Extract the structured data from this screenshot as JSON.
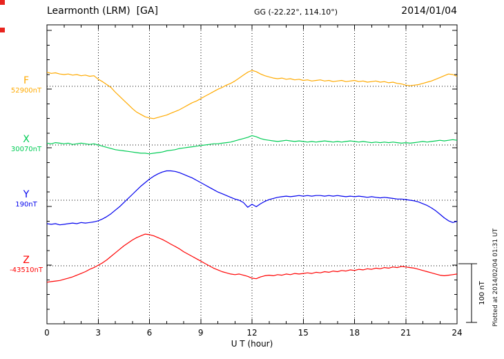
{
  "header": {
    "station": "Learmonth (LRM)  [GA]",
    "coords": "GG (-22.22°, 114.10°)",
    "date": "2014/01/04"
  },
  "footer_note": "Plotted at 2014/02/04 01:31 UT",
  "scale_bar": {
    "label": "100 nT",
    "nT": 100
  },
  "chart_data": {
    "type": "line",
    "title": "Learmonth (LRM) [GA] magnetogram 2014/01/04",
    "xlabel": "U T (hour)",
    "x_range": [
      0,
      24
    ],
    "x_major_ticks": [
      0,
      3,
      6,
      9,
      12,
      15,
      18,
      21,
      24
    ],
    "x_minor_step_hours": 1,
    "grid": "dotted",
    "sample_interval_hours": 0.25,
    "scale_division_nT": 100,
    "series": [
      {
        "name": "F",
        "baseline_label": "52900nT",
        "baseline_nT": 52900,
        "color": "#ffaa00",
        "offsets_nT": [
          24,
          22,
          23,
          21,
          20,
          21,
          19,
          20,
          18,
          19,
          17,
          18,
          12,
          8,
          3,
          -2,
          -10,
          -17,
          -24,
          -31,
          -38,
          -44,
          -48,
          -52,
          -54,
          -55,
          -53,
          -51,
          -49,
          -46,
          -43,
          -40,
          -36,
          -32,
          -28,
          -25,
          -21,
          -17,
          -13,
          -9,
          -5,
          -2,
          2,
          5,
          9,
          14,
          19,
          24,
          27,
          25,
          21,
          18,
          16,
          14,
          13,
          14,
          12,
          13,
          11,
          12,
          10,
          11,
          9,
          10,
          11,
          9,
          10,
          8,
          9,
          10,
          8,
          9,
          10,
          8,
          9,
          7,
          8,
          9,
          7,
          8,
          6,
          7,
          5,
          4,
          2,
          1,
          2,
          3,
          5,
          7,
          9,
          12,
          15,
          18,
          21,
          20,
          17
        ]
      },
      {
        "name": "X",
        "baseline_label": "30070nT",
        "baseline_nT": 30070,
        "color": "#00cc55",
        "offsets_nT": [
          3,
          2,
          4,
          3,
          2,
          3,
          1,
          2,
          3,
          2,
          1,
          2,
          0,
          -2,
          -4,
          -6,
          -8,
          -9,
          -10,
          -11,
          -12,
          -13,
          -14,
          -14,
          -15,
          -14,
          -13,
          -12,
          -10,
          -9,
          -8,
          -6,
          -5,
          -4,
          -3,
          -2,
          -1,
          0,
          1,
          2,
          2,
          3,
          4,
          5,
          7,
          9,
          11,
          13,
          16,
          14,
          11,
          9,
          8,
          7,
          6,
          7,
          8,
          7,
          6,
          7,
          6,
          5,
          6,
          5,
          6,
          7,
          6,
          5,
          6,
          5,
          6,
          7,
          6,
          5,
          6,
          5,
          4,
          5,
          4,
          5,
          4,
          5,
          4,
          3,
          4,
          3,
          4,
          5,
          6,
          5,
          6,
          7,
          8,
          7,
          8,
          9,
          8
        ]
      },
      {
        "name": "Y",
        "baseline_label": "190nT",
        "baseline_nT": 190,
        "color": "#0000ee",
        "offsets_nT": [
          -40,
          -41,
          -40,
          -42,
          -41,
          -40,
          -39,
          -40,
          -38,
          -39,
          -38,
          -37,
          -35,
          -32,
          -28,
          -23,
          -17,
          -11,
          -4,
          3,
          10,
          17,
          24,
          30,
          36,
          41,
          45,
          48,
          50,
          50,
          49,
          47,
          44,
          41,
          38,
          34,
          30,
          26,
          22,
          18,
          14,
          11,
          8,
          5,
          2,
          0,
          -4,
          -12,
          -7,
          -11,
          -6,
          -2,
          1,
          3,
          5,
          6,
          7,
          6,
          7,
          8,
          7,
          8,
          7,
          8,
          8,
          7,
          8,
          7,
          8,
          7,
          6,
          7,
          6,
          7,
          6,
          5,
          6,
          5,
          4,
          5,
          4,
          3,
          2,
          2,
          1,
          0,
          -1,
          -3,
          -6,
          -9,
          -13,
          -18,
          -24,
          -30,
          -35,
          -38,
          -36
        ]
      },
      {
        "name": "Z",
        "baseline_label": "-43510nT",
        "baseline_nT": -43510,
        "color": "#ff0000",
        "offsets_nT": [
          -28,
          -27,
          -26,
          -25,
          -23,
          -21,
          -19,
          -16,
          -13,
          -10,
          -6,
          -3,
          1,
          5,
          10,
          16,
          22,
          28,
          34,
          39,
          44,
          48,
          51,
          54,
          53,
          51,
          48,
          45,
          41,
          37,
          33,
          29,
          24,
          20,
          16,
          12,
          8,
          4,
          0,
          -4,
          -7,
          -10,
          -12,
          -14,
          -15,
          -14,
          -16,
          -18,
          -21,
          -22,
          -19,
          -17,
          -16,
          -17,
          -15,
          -16,
          -14,
          -15,
          -13,
          -14,
          -13,
          -12,
          -13,
          -11,
          -12,
          -10,
          -11,
          -9,
          -10,
          -8,
          -9,
          -7,
          -8,
          -6,
          -7,
          -5,
          -6,
          -4,
          -5,
          -3,
          -4,
          -2,
          -3,
          -1,
          -2,
          -3,
          -4,
          -6,
          -8,
          -10,
          -12,
          -14,
          -16,
          -17,
          -16,
          -15,
          -14
        ]
      }
    ]
  }
}
